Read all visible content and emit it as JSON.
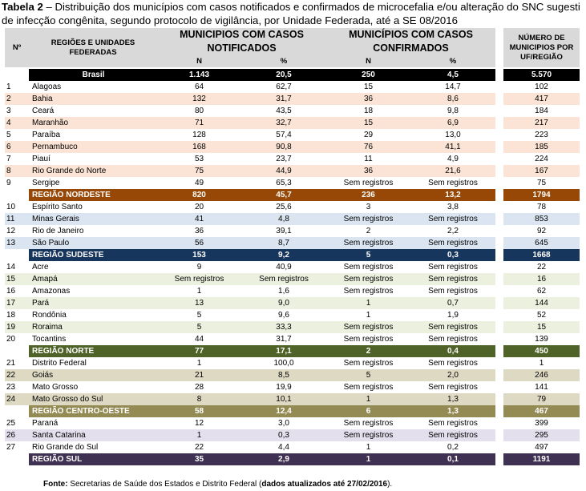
{
  "caption": {
    "label": "Tabela 2",
    "text": " – Distribuição dos municípios com casos notificados e confirmados de microcefalia e/ou alteração do SNC sugesti",
    "line2": "de infecção congênita, segundo protocolo de vigilância, por Unidade Federada, até a SE 08/2016"
  },
  "headers": {
    "num": "Nº",
    "region": "REGIÕES E UNIDADES FEDERADAS",
    "notified": "MUNICIPIOS COM CASOS NOTIFICADOS",
    "confirmed": "MUNICÍPIOS COM CASOS CONFIRMADOS",
    "total": "NÚMERO DE MUNICIPIOS POR UF/REGIÃO",
    "n": "N",
    "pct": "%"
  },
  "rows": [
    {
      "kind": "total",
      "style": "t-br",
      "idx": "",
      "name": "Brasil",
      "nn": "1.143",
      "np": "20,5",
      "cn": "250",
      "cp": "4,5",
      "tot": "5.570"
    },
    {
      "kind": "uf",
      "style": "white",
      "idx": "1",
      "name": "Alagoas",
      "nn": "64",
      "np": "62,7",
      "cn": "15",
      "cp": "14,7",
      "tot": "102"
    },
    {
      "kind": "uf",
      "style": "peach",
      "idx": "2",
      "name": "Bahia",
      "nn": "132",
      "np": "31,7",
      "cn": "36",
      "cp": "8,6",
      "tot": "417"
    },
    {
      "kind": "uf",
      "style": "white",
      "idx": "3",
      "name": "Ceará",
      "nn": "80",
      "np": "43,5",
      "cn": "18",
      "cp": "9,8",
      "tot": "184"
    },
    {
      "kind": "uf",
      "style": "peach",
      "idx": "4",
      "name": "Maranhão",
      "nn": "71",
      "np": "32,7",
      "cn": "15",
      "cp": "6,9",
      "tot": "217"
    },
    {
      "kind": "uf",
      "style": "white",
      "idx": "5",
      "name": "Paraíba",
      "nn": "128",
      "np": "57,4",
      "cn": "29",
      "cp": "13,0",
      "tot": "223"
    },
    {
      "kind": "uf",
      "style": "peach",
      "idx": "6",
      "name": "Pernambuco",
      "nn": "168",
      "np": "90,8",
      "cn": "76",
      "cp": "41,1",
      "tot": "185"
    },
    {
      "kind": "uf",
      "style": "white",
      "idx": "7",
      "name": "Piauí",
      "nn": "53",
      "np": "23,7",
      "cn": "11",
      "cp": "4,9",
      "tot": "224"
    },
    {
      "kind": "uf",
      "style": "peach",
      "idx": "8",
      "name": "Rio Grande do Norte",
      "nn": "75",
      "np": "44,9",
      "cn": "36",
      "cp": "21,6",
      "tot": "167"
    },
    {
      "kind": "uf",
      "style": "white",
      "idx": "9",
      "name": "Sergipe",
      "nn": "49",
      "np": "65,3",
      "cn": "Sem registros",
      "cp": "Sem registros",
      "tot": "75"
    },
    {
      "kind": "total",
      "style": "t-ne",
      "idx": "",
      "name": "REGIÃO NORDESTE",
      "nn": "820",
      "np": "45,7",
      "cn": "236",
      "cp": "13,2",
      "tot": "1794"
    },
    {
      "kind": "uf",
      "style": "white",
      "idx": "10",
      "name": "Espírito Santo",
      "nn": "20",
      "np": "25,6",
      "cn": "3",
      "cp": "3,8",
      "tot": "78"
    },
    {
      "kind": "uf",
      "style": "blue",
      "idx": "11",
      "name": "Minas Gerais",
      "nn": "41",
      "np": "4,8",
      "cn": "Sem registros",
      "cp": "Sem registros",
      "tot": "853"
    },
    {
      "kind": "uf",
      "style": "white",
      "idx": "12",
      "name": "Rio de Janeiro",
      "nn": "36",
      "np": "39,1",
      "cn": "2",
      "cp": "2,2",
      "tot": "92"
    },
    {
      "kind": "uf",
      "style": "blue",
      "idx": "13",
      "name": "São Paulo",
      "nn": "56",
      "np": "8,7",
      "cn": "Sem registros",
      "cp": "Sem registros",
      "tot": "645"
    },
    {
      "kind": "total",
      "style": "t-se",
      "idx": "",
      "name": "REGIÃO SUDESTE",
      "nn": "153",
      "np": "9,2",
      "cn": "5",
      "cp": "0,3",
      "tot": "1668"
    },
    {
      "kind": "uf",
      "style": "white",
      "idx": "14",
      "name": "Acre",
      "nn": "9",
      "np": "40,9",
      "cn": "Sem registros",
      "cp": "Sem registros",
      "tot": "22"
    },
    {
      "kind": "uf",
      "style": "green",
      "idx": "15",
      "name": "Amapá",
      "nn": "Sem registros",
      "np": "Sem registros",
      "cn": "Sem registros",
      "cp": "Sem registros",
      "tot": "16"
    },
    {
      "kind": "uf",
      "style": "white",
      "idx": "16",
      "name": "Amazonas",
      "nn": "1",
      "np": "1,6",
      "cn": "Sem registros",
      "cp": "Sem registros",
      "tot": "62"
    },
    {
      "kind": "uf",
      "style": "green",
      "idx": "17",
      "name": "Pará",
      "nn": "13",
      "np": "9,0",
      "cn": "1",
      "cp": "0,7",
      "tot": "144"
    },
    {
      "kind": "uf",
      "style": "white",
      "idx": "18",
      "name": "Rondônia",
      "nn": "5",
      "np": "9,6",
      "cn": "1",
      "cp": "1,9",
      "tot": "52"
    },
    {
      "kind": "uf",
      "style": "green",
      "idx": "19",
      "name": "Roraima",
      "nn": "5",
      "np": "33,3",
      "cn": "Sem registros",
      "cp": "Sem registros",
      "tot": "15"
    },
    {
      "kind": "uf",
      "style": "white",
      "idx": "20",
      "name": "Tocantins",
      "nn": "44",
      "np": "31,7",
      "cn": "Sem registros",
      "cp": "Sem registros",
      "tot": "139"
    },
    {
      "kind": "total",
      "style": "t-no",
      "idx": "",
      "name": "REGIÃO NORTE",
      "nn": "77",
      "np": "17,1",
      "cn": "2",
      "cp": "0,4",
      "tot": "450"
    },
    {
      "kind": "uf",
      "style": "white",
      "idx": "21",
      "name": "Distrito Federal",
      "nn": "1",
      "np": "100,0",
      "cn": "Sem registros",
      "cp": "Sem registros",
      "tot": "1"
    },
    {
      "kind": "uf",
      "style": "tan",
      "idx": "22",
      "name": "Goiás",
      "nn": "21",
      "np": "8,5",
      "cn": "5",
      "cp": "2,0",
      "tot": "246"
    },
    {
      "kind": "uf",
      "style": "white",
      "idx": "23",
      "name": "Mato Grosso",
      "nn": "28",
      "np": "19,9",
      "cn": "Sem registros",
      "cp": "Sem registros",
      "tot": "141"
    },
    {
      "kind": "uf",
      "style": "tan",
      "idx": "24",
      "name": "Mato Grosso do Sul",
      "nn": "8",
      "np": "10,1",
      "cn": "1",
      "cp": "1,3",
      "tot": "79"
    },
    {
      "kind": "total",
      "style": "t-co",
      "idx": "",
      "name": "REGIÃO CENTRO-OESTE",
      "nn": "58",
      "np": "12,4",
      "cn": "6",
      "cp": "1,3",
      "tot": "467"
    },
    {
      "kind": "uf",
      "style": "white",
      "idx": "25",
      "name": "Paraná",
      "nn": "12",
      "np": "3,0",
      "cn": "Sem registros",
      "cp": "Sem registros",
      "tot": "399"
    },
    {
      "kind": "uf",
      "style": "lav",
      "idx": "26",
      "name": "Santa Catarina",
      "nn": "1",
      "np": "0,3",
      "cn": "Sem registros",
      "cp": "Sem registros",
      "tot": "295"
    },
    {
      "kind": "uf",
      "style": "white",
      "idx": "27",
      "name": "Rio Grande do Sul",
      "nn": "22",
      "np": "4,4",
      "cn": "1",
      "cp": "0,2",
      "tot": "497"
    },
    {
      "kind": "total",
      "style": "t-su",
      "idx": "",
      "name": "REGIÃO SUL",
      "nn": "35",
      "np": "2,9",
      "cn": "1",
      "cp": "0,1",
      "tot": "1191"
    }
  ],
  "footer": {
    "label": "Fonte:",
    "text": " Secretarias de Saúde dos Estados e Distrito Federal (",
    "bold": "dados atualizados até 27/02/2016",
    "end": ")."
  }
}
